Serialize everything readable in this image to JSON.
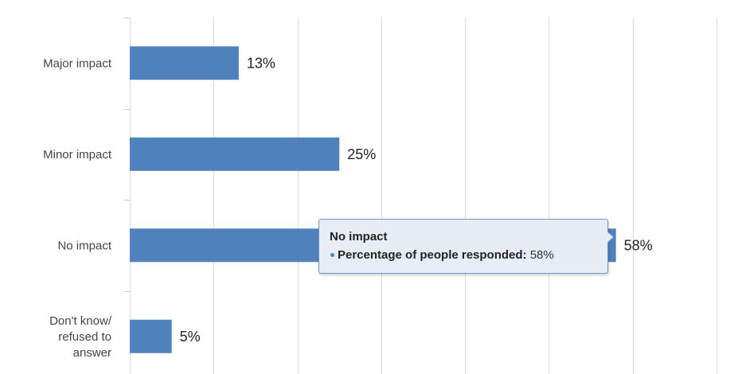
{
  "chart_data": {
    "type": "bar",
    "orientation": "horizontal",
    "categories": [
      [
        "Major impact"
      ],
      [
        "Minor impact"
      ],
      [
        "No impact"
      ],
      [
        "Don't know/",
        "refused to",
        "answer"
      ]
    ],
    "series": [
      {
        "values": [
          13,
          25,
          58,
          5
        ]
      }
    ],
    "data_labels": [
      "13%",
      "25%",
      "58%",
      "5%"
    ],
    "xlim": [
      0,
      70
    ],
    "gridlines_x": [
      0,
      10,
      20,
      30,
      40,
      50,
      60,
      70
    ],
    "grid": true,
    "legend": "none",
    "bar_color": "#4f81bd"
  },
  "tooltip": {
    "title": "No impact",
    "series_label": "Percentage of people responded:",
    "value": "58%"
  }
}
